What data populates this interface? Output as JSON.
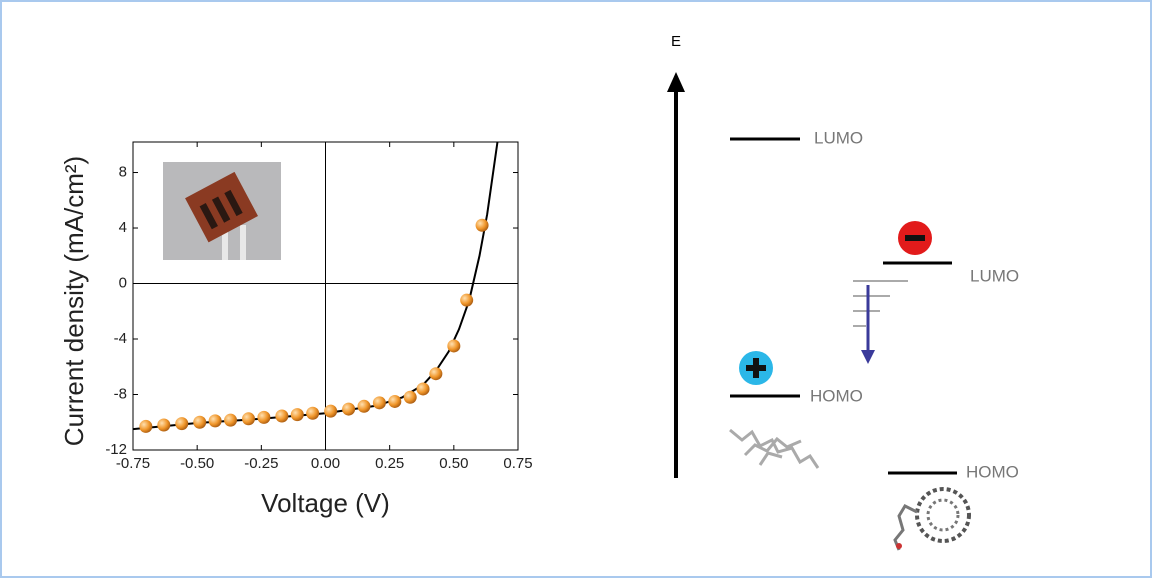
{
  "chart_data": {
    "type": "scatter",
    "xlabel": "Voltage (V)",
    "ylabel": "Current density (mA/cm²)",
    "x": [
      -0.7,
      -0.63,
      -0.56,
      -0.49,
      -0.43,
      -0.37,
      -0.3,
      -0.24,
      -0.17,
      -0.11,
      -0.05,
      0.02,
      0.09,
      0.15,
      0.21,
      0.27,
      0.33,
      0.38,
      0.43,
      0.5,
      0.55,
      0.61
    ],
    "values": [
      -10.3,
      -10.2,
      -10.1,
      -10.0,
      -9.9,
      -9.85,
      -9.75,
      -9.65,
      -9.55,
      -9.45,
      -9.35,
      -9.2,
      -9.05,
      -8.85,
      -8.6,
      -8.5,
      -8.2,
      -7.6,
      -6.5,
      -4.5,
      -1.2,
      4.2
    ],
    "color": "#f0962a",
    "fit": {
      "x": [
        -0.75,
        -0.5,
        -0.25,
        0,
        0.2,
        0.3,
        0.38,
        0.43,
        0.48,
        0.52,
        0.56,
        0.6,
        0.63,
        0.67
      ],
      "values": [
        -10.5,
        -10.05,
        -9.75,
        -9.35,
        -8.8,
        -8.2,
        -7.3,
        -6.3,
        -4.9,
        -3.3,
        -1.2,
        2.0,
        5.0,
        10.2
      ]
    },
    "xlim": [
      -0.75,
      0.75
    ],
    "xticks": [
      -0.75,
      {
        "value": -0.5,
        "label": "-0.50"
      },
      -0.25,
      {
        "value": 0,
        "label": "0.00"
      },
      0.25,
      {
        "value": 0.5,
        "label": "0.50"
      },
      0.75
    ],
    "ylim": [
      -12,
      10.2
    ],
    "yticks": [
      -12,
      -8,
      -4,
      0,
      4,
      8
    ]
  },
  "diagram": {
    "axis_label": "E",
    "donor": {
      "lumo": "LUMO",
      "homo": "HOMO"
    },
    "acceptor": {
      "lumo": "LUMO",
      "homo": "HOMO"
    }
  }
}
